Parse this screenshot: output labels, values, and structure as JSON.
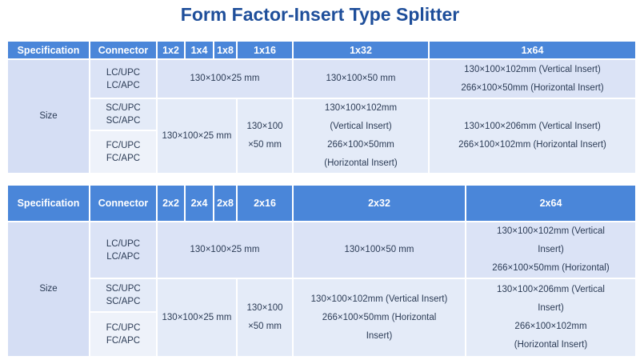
{
  "title": "Form Factor-Insert Type Splitter",
  "table1": {
    "headers": [
      "Specification",
      "Connector",
      "1x2",
      "1x4",
      "1x8",
      "1x16",
      "1x32",
      "1x64"
    ],
    "row_label": "Size",
    "connectors": [
      "LC/UPC",
      "LC/APC",
      "SC/UPC",
      "SC/APC",
      "FC/UPC",
      "FC/APC"
    ],
    "lc_small": "130×100×25 mm",
    "lc_32": "130×100×50 mm",
    "lc_64_a": "130×100×102mm  (Vertical Insert)",
    "lc_64_b": "266×100×50mm  (Horizontal Insert)",
    "scfc_small": "130×100×25 mm",
    "scfc_16_a": "130×100",
    "scfc_16_b": "×50 mm",
    "scfc_32_a": "130×100×102mm",
    "scfc_32_b": "(Vertical Insert)",
    "scfc_32_c": "266×100×50mm",
    "scfc_32_d": "(Horizontal Insert)",
    "scfc_64_a": "130×100×206mm  (Vertical Insert)",
    "scfc_64_b": "266×100×102mm  (Horizontal Insert)"
  },
  "table2": {
    "headers": [
      "Specification",
      "Connector",
      "2x2",
      "2x4",
      "2x8",
      "2x16",
      "2x32",
      "2x64"
    ],
    "row_label": "Size",
    "connectors": [
      "LC/UPC",
      "LC/APC",
      "SC/UPC",
      "SC/APC",
      "FC/UPC",
      "FC/APC"
    ],
    "lc_small": "130×100×25 mm",
    "lc_32": "130×100×50 mm",
    "lc_64_a": "130×100×102mm  (Vertical",
    "lc_64_b": "Insert)",
    "lc_64_c": "266×100×50mm  (Horizontal)",
    "scfc_small": "130×100×25 mm",
    "scfc_16_a": "130×100",
    "scfc_16_b": "×50 mm",
    "scfc_32_a": "130×100×102mm  (Vertical Insert)",
    "scfc_32_b": "266×100×50mm  (Horizontal",
    "scfc_32_c": "Insert)",
    "scfc_64_a": "130×100×206mm  (Vertical",
    "scfc_64_b": "Insert)",
    "scfc_64_c": "266×100×102mm",
    "scfc_64_d": "(Horizontal Insert)"
  }
}
